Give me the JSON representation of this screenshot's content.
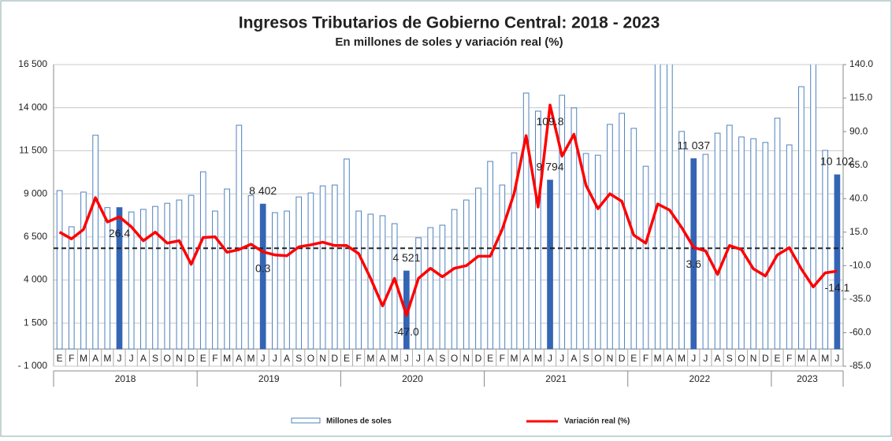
{
  "chart_data": {
    "type": "bar-line",
    "title": "Ingresos Tributarios de Gobierno Central: 2018 - 2023",
    "subtitle": "En millones de soles y variación real (%)",
    "categories": [
      "E",
      "F",
      "M",
      "A",
      "M",
      "J",
      "J",
      "A",
      "S",
      "O",
      "N",
      "D",
      "E",
      "F",
      "M",
      "A",
      "M",
      "J",
      "J",
      "A",
      "S",
      "O",
      "N",
      "D",
      "E",
      "F",
      "M",
      "A",
      "M",
      "J",
      "J",
      "A",
      "S",
      "O",
      "N",
      "D",
      "E",
      "F",
      "M",
      "A",
      "M",
      "J",
      "J",
      "A",
      "S",
      "O",
      "N",
      "D",
      "E",
      "F",
      "M",
      "A",
      "M",
      "J",
      "J",
      "A",
      "S",
      "O",
      "N",
      "D",
      "E",
      "F",
      "M",
      "A",
      "M",
      "J"
    ],
    "groups": [
      {
        "name": "2018",
        "count": 12
      },
      {
        "name": "2019",
        "count": 12
      },
      {
        "name": "2020",
        "count": 12
      },
      {
        "name": "2021",
        "count": 12
      },
      {
        "name": "2022",
        "count": 12
      },
      {
        "name": "2023",
        "count": 6
      }
    ],
    "series": [
      {
        "name": "Millones de soles",
        "color": "#4f81bd",
        "highlight_color": "#3465b5",
        "highlight_indices": [
          5,
          17,
          29,
          41,
          53,
          65
        ],
        "values": [
          9190,
          7090,
          9100,
          12400,
          8200,
          8200,
          7950,
          8100,
          8270,
          8450,
          8640,
          8910,
          10280,
          8000,
          9280,
          12980,
          8900,
          8402,
          7910,
          8000,
          8820,
          9050,
          9460,
          9510,
          11020,
          8000,
          7820,
          7730,
          7270,
          4521,
          6450,
          7040,
          7180,
          8090,
          8640,
          9330,
          10880,
          9510,
          11380,
          14850,
          13800,
          9794,
          14720,
          13990,
          11340,
          11240,
          13030,
          13670,
          12800,
          10600,
          17000,
          17000,
          12620,
          11037,
          11290,
          12520,
          12980,
          12300,
          12200,
          11980,
          13390,
          11840,
          15220,
          17000,
          11520,
          10102
        ],
        "value_labels": [
          null,
          null,
          null,
          null,
          null,
          null,
          null,
          null,
          null,
          null,
          null,
          null,
          null,
          null,
          null,
          null,
          null,
          "8 402",
          null,
          null,
          null,
          null,
          null,
          null,
          null,
          null,
          null,
          null,
          null,
          "4 521",
          null,
          null,
          null,
          null,
          null,
          null,
          null,
          null,
          null,
          null,
          null,
          "9 794",
          null,
          null,
          null,
          null,
          null,
          null,
          null,
          null,
          null,
          null,
          null,
          "11 037",
          null,
          null,
          null,
          null,
          null,
          null,
          null,
          null,
          null,
          null,
          null,
          "10 102"
        ]
      },
      {
        "name": "Variación real (%)",
        "color": "#ff0000",
        "axis": "y2",
        "values": [
          15,
          10,
          17,
          40.7,
          22.6,
          26.4,
          19,
          8.6,
          15,
          6.8,
          8.6,
          -9,
          11,
          11.5,
          0,
          2,
          6,
          0.3,
          -2,
          -2.6,
          4,
          5.5,
          7.5,
          5,
          5,
          -1,
          -19.5,
          -40,
          -19.5,
          -47,
          -19.5,
          -12,
          -18.3,
          -12,
          -10,
          -3,
          -3,
          17,
          44,
          87,
          33.7,
          109.8,
          71.7,
          88,
          50,
          32.5,
          43.6,
          38,
          12.7,
          6.8,
          36,
          31.4,
          18.5,
          3.6,
          1,
          -16.5,
          5,
          2,
          -12.4,
          -17.7,
          -2,
          3.4,
          -12.4,
          -25.9,
          -15.4,
          -14.1
        ],
        "value_labels": [
          null,
          null,
          null,
          null,
          null,
          "26.4",
          null,
          null,
          null,
          null,
          null,
          null,
          null,
          null,
          null,
          null,
          null,
          "0.3",
          null,
          null,
          null,
          null,
          null,
          null,
          null,
          null,
          null,
          null,
          null,
          "-47.0",
          null,
          null,
          null,
          null,
          null,
          null,
          null,
          null,
          null,
          null,
          null,
          "109.8",
          null,
          null,
          null,
          null,
          null,
          null,
          null,
          null,
          null,
          null,
          null,
          "3.6",
          null,
          null,
          null,
          null,
          null,
          null,
          null,
          null,
          null,
          null,
          null,
          "-14.1"
        ]
      }
    ],
    "reference_line": {
      "axis": "y2",
      "value": 3
    },
    "ylim": [
      -1000,
      16500
    ],
    "yticks": [
      {
        "value": -1000,
        "label": "- 1 000"
      },
      {
        "value": 1500,
        "label": "1 500"
      },
      {
        "value": 4000,
        "label": "4 000"
      },
      {
        "value": 6500,
        "label": "6 500"
      },
      {
        "value": 9000,
        "label": "9 000"
      },
      {
        "value": 11500,
        "label": "11 500"
      },
      {
        "value": 14000,
        "label": "14 000"
      },
      {
        "value": 16500,
        "label": "16 500"
      }
    ],
    "y2lim": [
      -85,
      140
    ],
    "y2ticks": [
      {
        "value": -85,
        "label": "-85.0"
      },
      {
        "value": -60,
        "label": "-60.0"
      },
      {
        "value": -35,
        "label": "-35.0"
      },
      {
        "value": -10,
        "label": "-10.0"
      },
      {
        "value": 15,
        "label": "15.0"
      },
      {
        "value": 40,
        "label": "40.0"
      },
      {
        "value": 65,
        "label": "65.0"
      },
      {
        "value": 90,
        "label": "90.0"
      },
      {
        "value": 115,
        "label": "115.0"
      },
      {
        "value": 140,
        "label": "140.0"
      }
    ],
    "grid": true
  }
}
